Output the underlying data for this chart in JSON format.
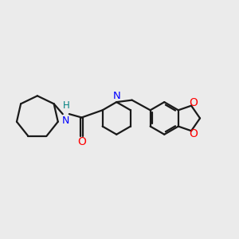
{
  "background_color": "#ebebeb",
  "bond_color": "#1a1a1a",
  "N_color": "#0000ff",
  "O_color": "#ff0000",
  "NH_color": "#008080",
  "line_width": 1.6,
  "figsize": [
    3.0,
    3.0
  ],
  "dpi": 100,
  "xlim": [
    -3.8,
    5.8
  ],
  "ylim": [
    -2.8,
    2.8
  ]
}
